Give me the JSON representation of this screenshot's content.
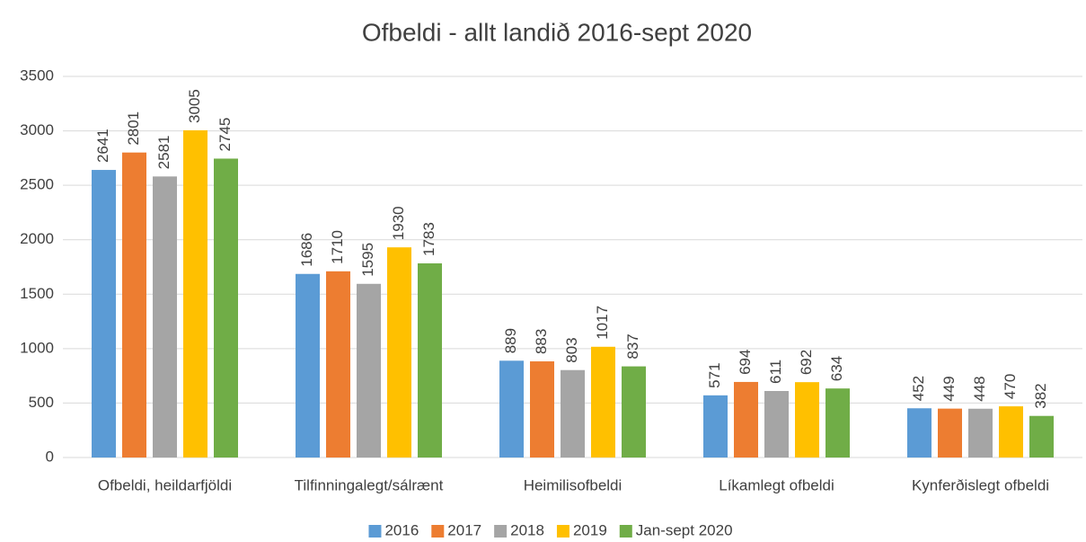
{
  "chart_data": {
    "type": "bar",
    "title": "Ofbeldi - allt landið 2016-sept 2020",
    "categories": [
      "Ofbeldi, heildarfjöldi",
      "Tilfinningalegt/sálrænt",
      "Heimilisofbeldi",
      "Líkamlegt ofbeldi",
      "Kynferðislegt ofbeldi"
    ],
    "series": [
      {
        "name": "2016",
        "color": "#5b9bd5",
        "values": [
          2641,
          1686,
          889,
          571,
          452
        ]
      },
      {
        "name": "2017",
        "color": "#ed7d31",
        "values": [
          2801,
          1710,
          883,
          694,
          449
        ]
      },
      {
        "name": "2018",
        "color": "#a5a5a5",
        "values": [
          2581,
          1595,
          803,
          611,
          448
        ]
      },
      {
        "name": "2019",
        "color": "#ffc000",
        "values": [
          3005,
          1930,
          1017,
          692,
          470
        ]
      },
      {
        "name": "Jan-sept 2020",
        "color": "#70ad47",
        "values": [
          2745,
          1783,
          837,
          634,
          382
        ]
      }
    ],
    "ylim": [
      0,
      3500
    ],
    "yticks": [
      0,
      500,
      1000,
      1500,
      2000,
      2500,
      3000,
      3500
    ],
    "grid": true,
    "legend": "bottom"
  }
}
